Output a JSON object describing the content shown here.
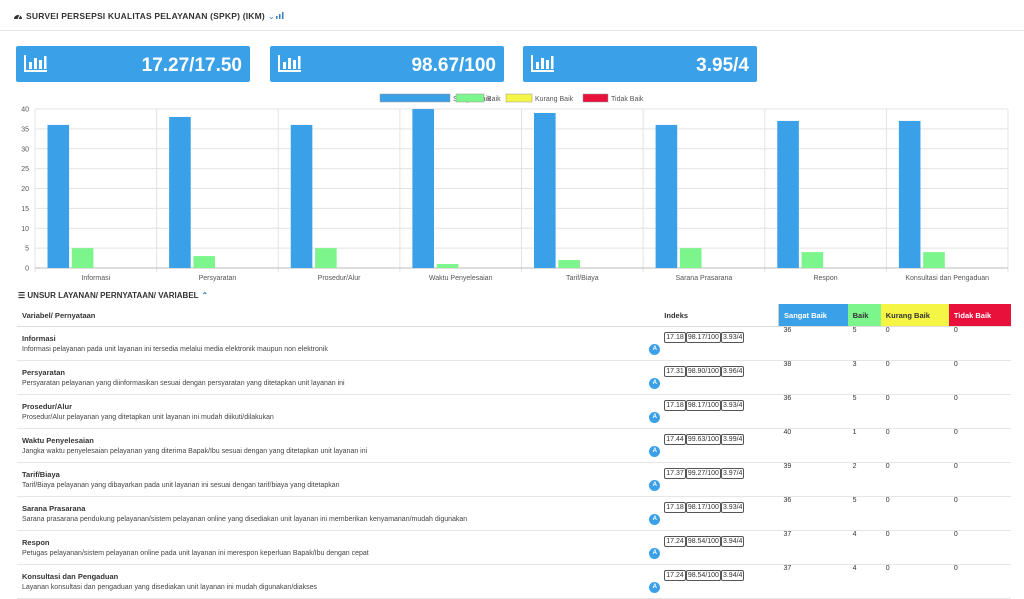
{
  "header": {
    "title": "SURVEI PERSEPSI KUALITAS PELAYANAN (SPKP) (IKM)"
  },
  "cards": [
    {
      "value": "17.27/17.50"
    },
    {
      "value": "98.67/100"
    },
    {
      "value": "3.95/4"
    }
  ],
  "chart_data": {
    "type": "bar",
    "categories": [
      "Informasi",
      "Persyaratan",
      "Prosedur/Alur",
      "Waktu Penyelesaian",
      "Tarif/Biaya",
      "Sarana Prasarana",
      "Respon",
      "Konsultasi dan Pengaduan"
    ],
    "series": [
      {
        "name": "Sangat Baik",
        "color": "#3aa0e8",
        "values": [
          36,
          38,
          36,
          40,
          39,
          36,
          37,
          37
        ]
      },
      {
        "name": "Baik",
        "color": "#7bf58c",
        "values": [
          5,
          3,
          5,
          1,
          2,
          5,
          4,
          4
        ]
      },
      {
        "name": "Kurang Baik",
        "color": "#f5f545",
        "values": [
          0,
          0,
          0,
          0,
          0,
          0,
          0,
          0
        ]
      },
      {
        "name": "Tidak Baik",
        "color": "#e7113c",
        "values": [
          0,
          0,
          0,
          0,
          0,
          0,
          0,
          0
        ]
      }
    ],
    "ylim": [
      0,
      40
    ],
    "yticks": [
      "0",
      "5",
      "10",
      "15",
      "20",
      "25",
      "30",
      "35",
      "40"
    ],
    "grid": true,
    "legend": "top-center"
  },
  "table": {
    "section_title": "UNSUR LAYANAN/ PERNYATAAN/ VARIABEL",
    "headers": {
      "variable": "Variabel/ Pernyataan",
      "index": "Indeks",
      "sb": "Sangat Baik",
      "b": "Baik",
      "kb": "Kurang Baik",
      "tb": "Tidak Baik"
    },
    "badge": "A",
    "rows": [
      {
        "name": "Informasi",
        "desc": "Informasi pelayanan pada unit layanan ini tersedia melalui media elektronik maupun non elektronik",
        "i1": "17.18",
        "i2": "98.17/100",
        "i3": "3.93/4",
        "sb": "36",
        "b": "5",
        "kb": "0",
        "tb": "0"
      },
      {
        "name": "Persyaratan",
        "desc": "Persyaratan pelayanan yang diinformasikan sesuai dengan persyaratan yang ditetapkan unit layanan ini",
        "i1": "17.31",
        "i2": "98.90/100",
        "i3": "3.96/4",
        "sb": "38",
        "b": "3",
        "kb": "0",
        "tb": "0"
      },
      {
        "name": "Prosedur/Alur",
        "desc": "Prosedur/Alur pelayanan yang ditetapkan unit layanan ini mudah diikuti/dilakukan",
        "i1": "17.18",
        "i2": "98.17/100",
        "i3": "3.93/4",
        "sb": "36",
        "b": "5",
        "kb": "0",
        "tb": "0"
      },
      {
        "name": "Waktu Penyelesaian",
        "desc": "Jangka waktu penyelesaian pelayanan yang diterima Bapak/Ibu sesuai dengan yang ditetapkan unit layanan ini",
        "i1": "17.44",
        "i2": "99.63/100",
        "i3": "3.99/4",
        "sb": "40",
        "b": "1",
        "kb": "0",
        "tb": "0"
      },
      {
        "name": "Tarif/Biaya",
        "desc": "Tarif/Biaya pelayanan yang dibayarkan pada unit layanan ini sesuai dengan tarif/biaya yang ditetapkan",
        "i1": "17.37",
        "i2": "99.27/100",
        "i3": "3.97/4",
        "sb": "39",
        "b": "2",
        "kb": "0",
        "tb": "0"
      },
      {
        "name": "Sarana Prasarana",
        "desc": "Sarana prasarana pendukung pelayanan/sistem pelayanan online yang disediakan unit layanan ini memberikan kenyamanan/mudah digunakan",
        "i1": "17.18",
        "i2": "98.17/100",
        "i3": "3.93/4",
        "sb": "36",
        "b": "5",
        "kb": "0",
        "tb": "0"
      },
      {
        "name": "Respon",
        "desc": "Petugas pelayanan/sistem pelayanan online pada unit layanan ini merespon keperluan Bapak/Ibu dengan cepat",
        "i1": "17.24",
        "i2": "98.54/100",
        "i3": "3.94/4",
        "sb": "37",
        "b": "4",
        "kb": "0",
        "tb": "0"
      },
      {
        "name": "Konsultasi dan Pengaduan",
        "desc": "Layanan konsultasi dan pengaduan yang disediakan unit layanan ini mudah digunakan/diakses",
        "i1": "17.24",
        "i2": "98.54/100",
        "i3": "3.94/4",
        "sb": "37",
        "b": "4",
        "kb": "0",
        "tb": "0"
      }
    ]
  }
}
